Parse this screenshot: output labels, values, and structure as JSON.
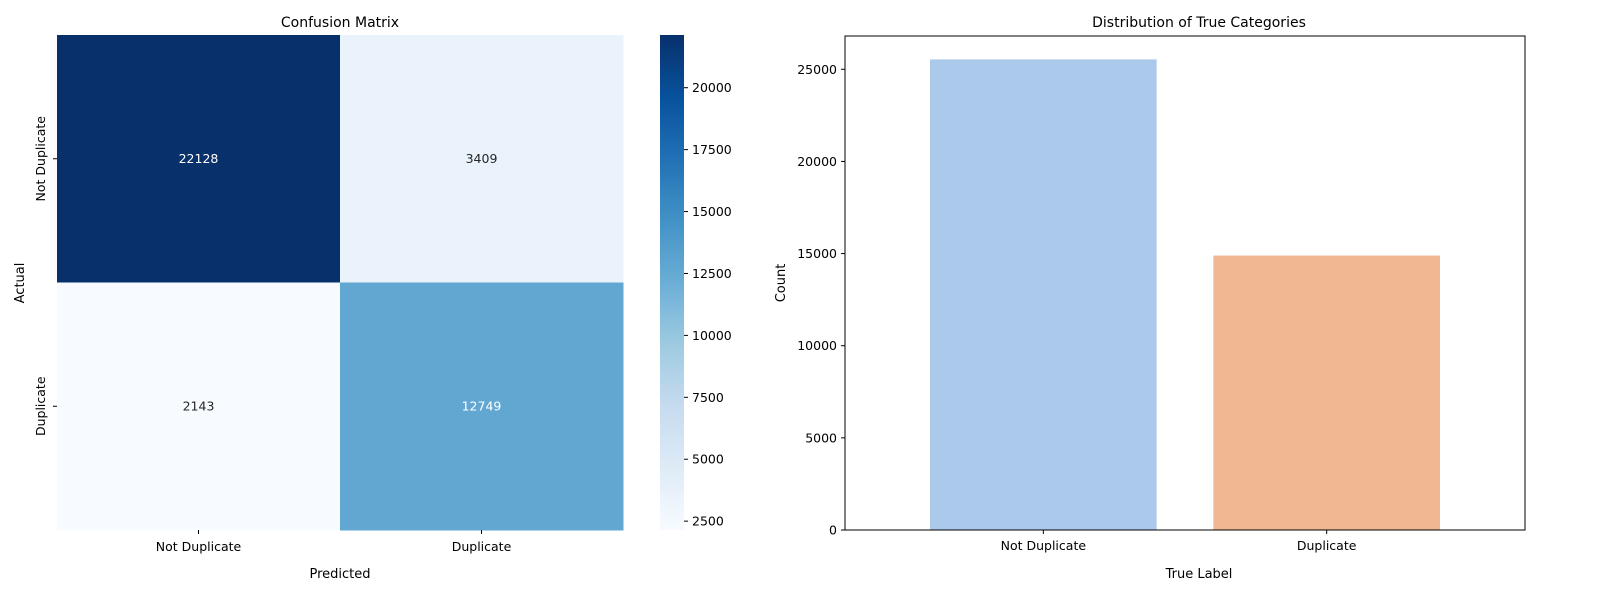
{
  "chart_data": [
    {
      "type": "heatmap",
      "title": "Confusion Matrix",
      "xlabel": "Predicted",
      "ylabel": "Actual",
      "x_categories": [
        "Not Duplicate",
        "Duplicate"
      ],
      "y_categories": [
        "Not Duplicate",
        "Duplicate"
      ],
      "values": [
        [
          22128,
          3409
        ],
        [
          2143,
          12749
        ]
      ],
      "colormap": "Blues",
      "colorbar": {
        "range": [
          2143,
          22128
        ],
        "ticks": [
          2500,
          5000,
          7500,
          10000,
          12500,
          15000,
          17500,
          20000
        ]
      }
    },
    {
      "type": "bar",
      "title": "Distribution of True Categories",
      "xlabel": "True Label",
      "ylabel": "Count",
      "categories": [
        "Not Duplicate",
        "Duplicate"
      ],
      "values": [
        25537,
        14892
      ],
      "colors": [
        "#abc9ea",
        "#efb792"
      ],
      "ylim": [
        0,
        26806
      ],
      "yticks": [
        0,
        5000,
        10000,
        15000,
        20000,
        25000
      ],
      "grid": false
    }
  ]
}
